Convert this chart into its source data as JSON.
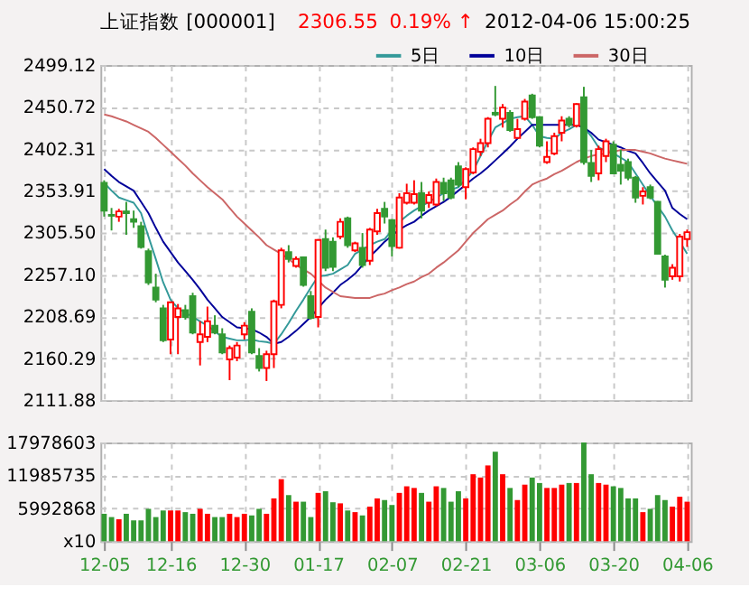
{
  "chart_data": [
    {
      "type": "candlestick",
      "title": "上证指数 [000001]",
      "annotations": [
        "2306.55",
        "0.19% ↑",
        "2012-04-06 15:00:25"
      ],
      "categories": [
        null,
        null,
        null,
        null,
        null,
        null,
        null,
        null,
        null,
        null,
        null,
        null,
        null,
        null,
        null,
        null,
        null,
        null,
        null,
        null,
        null,
        null,
        null,
        null,
        null,
        null,
        null,
        null,
        null,
        null,
        null,
        null,
        null,
        null,
        null,
        null,
        null,
        null,
        null,
        null,
        null,
        null,
        null,
        null,
        null,
        null,
        null,
        null,
        null,
        null,
        null,
        null,
        null,
        null,
        null,
        null,
        null,
        null,
        null,
        null,
        null,
        null,
        null,
        null,
        null,
        null,
        null,
        null,
        null,
        null,
        null,
        null,
        null,
        null,
        null,
        null,
        null,
        null,
        null,
        null
      ],
      "ohlc": [
        [
          2363,
          2366,
          2324,
          2331
        ],
        [
          2326,
          2334,
          2308,
          2325
        ],
        [
          2324,
          2333,
          2318,
          2330
        ],
        [
          2330,
          2341,
          2303,
          2328
        ],
        [
          2321,
          2331,
          2311,
          2318
        ],
        [
          2313,
          2318,
          2287,
          2289
        ],
        [
          2284,
          2287,
          2245,
          2248
        ],
        [
          2242,
          2258,
          2225,
          2228
        ],
        [
          2218,
          2222,
          2179,
          2181
        ],
        [
          2182,
          2225,
          2165,
          2225
        ],
        [
          2208,
          2223,
          2165,
          2218
        ],
        [
          2216,
          2222,
          2205,
          2208
        ],
        [
          2232,
          2236,
          2188,
          2190
        ],
        [
          2179,
          2203,
          2152,
          2188
        ],
        [
          2185,
          2220,
          2179,
          2203
        ],
        [
          2198,
          2210,
          2188,
          2190
        ],
        [
          2188,
          2195,
          2165,
          2167
        ],
        [
          2159,
          2175,
          2135,
          2172
        ],
        [
          2161,
          2179,
          2157,
          2175
        ],
        [
          2188,
          2202,
          2182,
          2198
        ],
        [
          2214,
          2218,
          2165,
          2167
        ],
        [
          2163,
          2172,
          2145,
          2149
        ],
        [
          2149,
          2169,
          2134,
          2165
        ],
        [
          2165,
          2228,
          2149,
          2226
        ],
        [
          2222,
          2288,
          2218,
          2285
        ],
        [
          2283,
          2291,
          2271,
          2275
        ],
        [
          2267,
          2278,
          2265,
          2275
        ],
        [
          2277,
          2278,
          2243,
          2245
        ],
        [
          2232,
          2238,
          2205,
          2207
        ],
        [
          2208,
          2298,
          2196,
          2297
        ],
        [
          2298,
          2309,
          2261,
          2265
        ],
        [
          2295,
          2300,
          2261,
          2266
        ],
        [
          2301,
          2322,
          2298,
          2318
        ],
        [
          2322,
          2324,
          2288,
          2291
        ],
        [
          2285,
          2295,
          2283,
          2293
        ],
        [
          2288,
          2305,
          2265,
          2268
        ],
        [
          2273,
          2311,
          2268,
          2309
        ],
        [
          2307,
          2333,
          2303,
          2328
        ],
        [
          2333,
          2341,
          2316,
          2324
        ],
        [
          2320,
          2321,
          2278,
          2290
        ],
        [
          2288,
          2351,
          2287,
          2346
        ],
        [
          2340,
          2362,
          2338,
          2351
        ],
        [
          2340,
          2366,
          2338,
          2350
        ],
        [
          2351,
          2364,
          2322,
          2331
        ],
        [
          2340,
          2353,
          2334,
          2349
        ],
        [
          2338,
          2368,
          2336,
          2364
        ],
        [
          2363,
          2369,
          2342,
          2351
        ],
        [
          2366,
          2369,
          2344,
          2346
        ],
        [
          2382,
          2387,
          2358,
          2361
        ],
        [
          2358,
          2381,
          2344,
          2379
        ],
        [
          2375,
          2404,
          2373,
          2402
        ],
        [
          2399,
          2414,
          2394,
          2409
        ],
        [
          2409,
          2439,
          2404,
          2437
        ],
        [
          2444,
          2475,
          2440,
          2442
        ],
        [
          2437,
          2454,
          2427,
          2450
        ],
        [
          2444,
          2447,
          2422,
          2424
        ],
        [
          2415,
          2437,
          2414,
          2425
        ],
        [
          2437,
          2460,
          2435,
          2457
        ],
        [
          2464,
          2466,
          2437,
          2439
        ],
        [
          2439,
          2440,
          2404,
          2406
        ],
        [
          2387,
          2411,
          2385,
          2393
        ],
        [
          2397,
          2421,
          2395,
          2417
        ],
        [
          2421,
          2440,
          2411,
          2435
        ],
        [
          2437,
          2440,
          2427,
          2430
        ],
        [
          2429,
          2455,
          2427,
          2454
        ],
        [
          2462,
          2474,
          2384,
          2387
        ],
        [
          2386,
          2401,
          2364,
          2371
        ],
        [
          2374,
          2406,
          2366,
          2402
        ],
        [
          2394,
          2414,
          2387,
          2411
        ],
        [
          2407,
          2411,
          2373,
          2374
        ],
        [
          2384,
          2401,
          2361,
          2377
        ],
        [
          2387,
          2391,
          2366,
          2369
        ],
        [
          2369,
          2371,
          2340,
          2346
        ],
        [
          2348,
          2358,
          2338,
          2353
        ],
        [
          2358,
          2361,
          2344,
          2346
        ],
        [
          2341,
          2342,
          2280,
          2281
        ],
        [
          2278,
          2280,
          2242,
          2251
        ],
        [
          2255,
          2269,
          2251,
          2265
        ],
        [
          2255,
          2304,
          2249,
          2301
        ],
        [
          2298,
          2309,
          2289,
          2306
        ]
      ],
      "colors": [
        "#339933",
        "#339933",
        "#ff0000",
        "#339933",
        "#339933",
        "#339933",
        "#339933",
        "#339933",
        "#339933",
        "#ff0000",
        "#ff0000",
        "#339933",
        "#339933",
        "#ff0000",
        "#ff0000",
        "#339933",
        "#339933",
        "#ff0000",
        "#ff0000",
        "#ff0000",
        "#339933",
        "#339933",
        "#ff0000",
        "#ff0000",
        "#ff0000",
        "#339933",
        "#ff0000",
        "#339933",
        "#339933",
        "#ff0000",
        "#339933",
        "#339933",
        "#ff0000",
        "#339933",
        "#ff0000",
        "#339933",
        "#ff0000",
        "#ff0000",
        "#339933",
        "#339933",
        "#ff0000",
        "#ff0000",
        "#ff0000",
        "#339933",
        "#ff0000",
        "#ff0000",
        "#339933",
        "#339933",
        "#339933",
        "#ff0000",
        "#ff0000",
        "#ff0000",
        "#ff0000",
        "#339933",
        "#ff0000",
        "#339933",
        "#ff0000",
        "#ff0000",
        "#339933",
        "#339933",
        "#ff0000",
        "#ff0000",
        "#ff0000",
        "#339933",
        "#ff0000",
        "#339933",
        "#339933",
        "#ff0000",
        "#ff0000",
        "#339933",
        "#339933",
        "#339933",
        "#339933",
        "#ff0000",
        "#339933",
        "#339933",
        "#339933",
        "#ff0000",
        "#ff0000",
        "#ff0000"
      ],
      "series": [
        {
          "name": "5日",
          "type": "line",
          "color": "#339999",
          "values": [
            2363,
            2354,
            2346,
            2343,
            2340,
            2328,
            2301,
            2275,
            2248,
            2228,
            2218,
            2213,
            2208,
            2203,
            2198,
            2191,
            2185,
            2183,
            2181,
            2181,
            2182,
            2180,
            2179,
            2177,
            2188,
            2201,
            2215,
            2228,
            2242,
            2255,
            2256,
            2258,
            2263,
            2268,
            2281,
            2286,
            2291,
            2295,
            2298,
            2308,
            2318,
            2325,
            2331,
            2336,
            2341,
            2346,
            2351,
            2355,
            2358,
            2367,
            2377,
            2394,
            2411,
            2427,
            2432,
            2437,
            2439,
            2440,
            2430,
            2417,
            2415,
            2414,
            2421,
            2425,
            2430,
            2427,
            2417,
            2404,
            2400,
            2397,
            2392,
            2387,
            2374,
            2361,
            2348,
            2336,
            2324,
            2308,
            2295,
            2281
          ]
        },
        {
          "name": "10日",
          "type": "line",
          "color": "#000099",
          "values": [
            2379,
            2371,
            2364,
            2359,
            2354,
            2341,
            2328,
            2311,
            2295,
            2283,
            2271,
            2261,
            2251,
            2240,
            2228,
            2218,
            2208,
            2202,
            2196,
            2195,
            2194,
            2190,
            2185,
            2177,
            2179,
            2185,
            2192,
            2200,
            2208,
            2218,
            2228,
            2236,
            2245,
            2251,
            2258,
            2268,
            2278,
            2286,
            2295,
            2302,
            2309,
            2314,
            2318,
            2325,
            2331,
            2336,
            2341,
            2347,
            2354,
            2361,
            2368,
            2374,
            2381,
            2389,
            2397,
            2405,
            2414,
            2422,
            2430,
            2430,
            2430,
            2430,
            2430,
            2430,
            2430,
            2427,
            2421,
            2413,
            2410,
            2407,
            2404,
            2400,
            2397,
            2386,
            2374,
            2364,
            2354,
            2334,
            2327,
            2321
          ]
        },
        {
          "name": "30日",
          "type": "line",
          "color": "#cc6666",
          "values": [
            2442,
            2440,
            2437,
            2434,
            2430,
            2426,
            2422,
            2415,
            2407,
            2399,
            2391,
            2383,
            2374,
            2366,
            2358,
            2351,
            2344,
            2334,
            2324,
            2316,
            2308,
            2300,
            2291,
            2286,
            2281,
            2275,
            2268,
            2263,
            2258,
            2250,
            2242,
            2237,
            2232,
            2231,
            2230,
            2230,
            2230,
            2233,
            2235,
            2239,
            2242,
            2246,
            2249,
            2254,
            2258,
            2265,
            2271,
            2278,
            2285,
            2295,
            2305,
            2313,
            2321,
            2326,
            2331,
            2338,
            2344,
            2353,
            2361,
            2365,
            2368,
            2373,
            2377,
            2382,
            2387,
            2391,
            2394,
            2396,
            2397,
            2399,
            2401,
            2401,
            2401,
            2399,
            2397,
            2394,
            2391,
            2389,
            2387,
            2385
          ]
        }
      ],
      "ylim": [
        2111.88,
        2499.12
      ],
      "yticks": [
        2499.12,
        2450.72,
        2402.31,
        2353.91,
        {
          "value": 2305.5,
          "label": "2305.50"
        },
        {
          "value": 2257.1,
          "label": "2257.10"
        },
        2208.69,
        2160.29,
        2111.88
      ],
      "grid": true,
      "legend": "top right",
      "tick_labels": "y"
    },
    {
      "type": "bar",
      "categories": [
        "12-05",
        null,
        null,
        null,
        null,
        null,
        null,
        null,
        null,
        "12-16",
        null,
        null,
        null,
        null,
        null,
        null,
        null,
        null,
        null,
        "12-30",
        null,
        null,
        null,
        null,
        null,
        null,
        null,
        null,
        null,
        "01-17",
        null,
        null,
        null,
        null,
        null,
        null,
        null,
        null,
        null,
        "02-07",
        null,
        null,
        null,
        null,
        null,
        null,
        null,
        null,
        null,
        "02-21",
        null,
        null,
        null,
        null,
        null,
        null,
        null,
        null,
        null,
        "03-06",
        null,
        null,
        null,
        null,
        null,
        null,
        null,
        null,
        null,
        "03-20",
        null,
        null,
        null,
        null,
        null,
        null,
        null,
        null,
        null,
        "04-06"
      ],
      "values": [
        5000000,
        4400000,
        4000000,
        5000000,
        3800000,
        3800000,
        5900000,
        4400000,
        5600000,
        5600000,
        5600000,
        5300000,
        5000000,
        5900000,
        5000000,
        4400000,
        4400000,
        5000000,
        4400000,
        5000000,
        4700000,
        5900000,
        5000000,
        7800000,
        11300000,
        8400000,
        7200000,
        7200000,
        4400000,
        8800000,
        9100000,
        7100000,
        6900000,
        5600000,
        5300000,
        4700000,
        6300000,
        7800000,
        7500000,
        6600000,
        8800000,
        10000000,
        9700000,
        8800000,
        7200000,
        10000000,
        9700000,
        7200000,
        9100000,
        7800000,
        12200000,
        11600000,
        13800000,
        16300000,
        12200000,
        9700000,
        7500000,
        10300000,
        11600000,
        10600000,
        9700000,
        9700000,
        10300000,
        10600000,
        10600000,
        17978603,
        12200000,
        10600000,
        10300000,
        10000000,
        9700000,
        7800000,
        7800000,
        5300000,
        5900000,
        8400000,
        7500000,
        6300000,
        8100000,
        7200000
      ],
      "colors": [
        "#339933",
        "#339933",
        "#ff0000",
        "#339933",
        "#339933",
        "#339933",
        "#339933",
        "#339933",
        "#339933",
        "#ff0000",
        "#ff0000",
        "#339933",
        "#339933",
        "#ff0000",
        "#ff0000",
        "#339933",
        "#339933",
        "#ff0000",
        "#ff0000",
        "#ff0000",
        "#339933",
        "#339933",
        "#ff0000",
        "#ff0000",
        "#ff0000",
        "#339933",
        "#ff0000",
        "#339933",
        "#339933",
        "#ff0000",
        "#339933",
        "#339933",
        "#ff0000",
        "#339933",
        "#ff0000",
        "#339933",
        "#ff0000",
        "#ff0000",
        "#339933",
        "#339933",
        "#ff0000",
        "#ff0000",
        "#ff0000",
        "#339933",
        "#ff0000",
        "#ff0000",
        "#339933",
        "#339933",
        "#339933",
        "#ff0000",
        "#ff0000",
        "#ff0000",
        "#ff0000",
        "#339933",
        "#ff0000",
        "#339933",
        "#ff0000",
        "#ff0000",
        "#339933",
        "#339933",
        "#ff0000",
        "#ff0000",
        "#ff0000",
        "#339933",
        "#ff0000",
        "#339933",
        "#339933",
        "#ff0000",
        "#ff0000",
        "#339933",
        "#339933",
        "#339933",
        "#339933",
        "#ff0000",
        "#339933",
        "#339933",
        "#339933",
        "#ff0000",
        "#ff0000",
        "#ff0000"
      ],
      "ylim": [
        0,
        17978603
      ],
      "yticks": [
        {
          "value": 0,
          "label": "x10"
        },
        5992868,
        11985735,
        17978603
      ],
      "grid": true
    }
  ]
}
